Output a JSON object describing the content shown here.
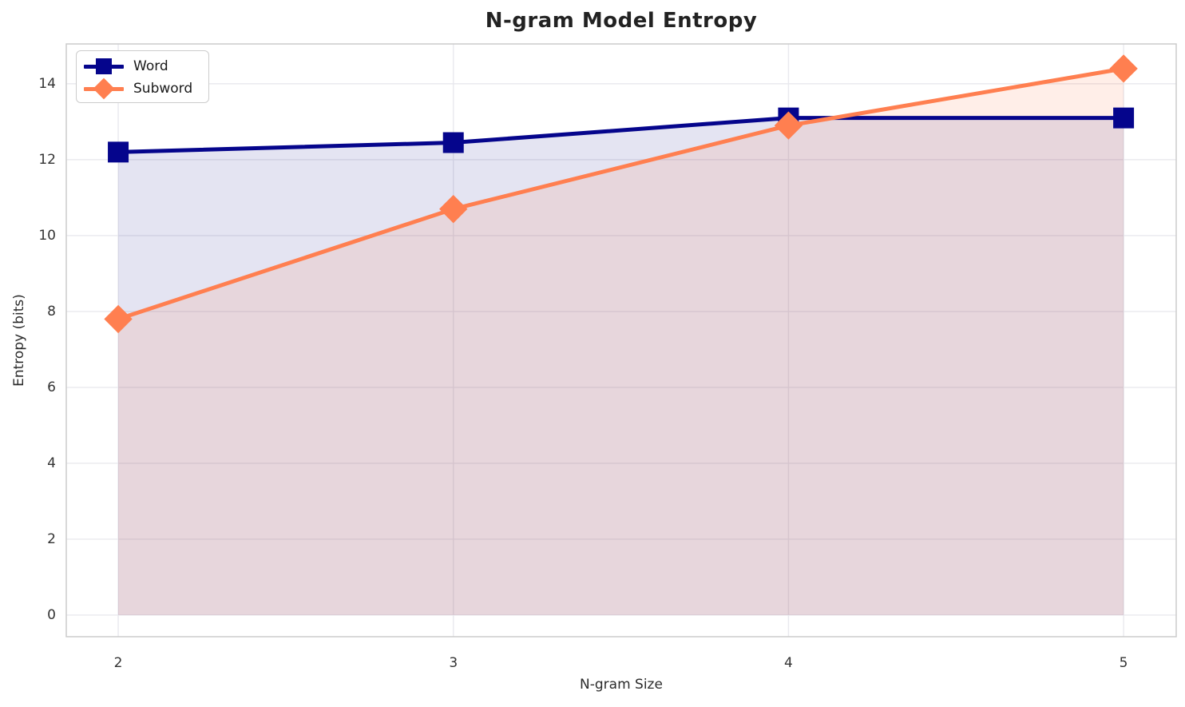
{
  "chart_data": {
    "type": "line",
    "title": "N-gram Model Entropy",
    "xlabel": "N-gram Size",
    "ylabel": "Entropy (bits)",
    "x": [
      2,
      3,
      4,
      5
    ],
    "series": [
      {
        "name": "Word",
        "values": [
          12.2,
          12.45,
          13.1,
          13.1
        ],
        "color": "#05058c",
        "marker": "square",
        "fill_opacity": 0.11
      },
      {
        "name": "Subword",
        "values": [
          7.8,
          10.7,
          12.9,
          14.4
        ],
        "color": "#ff7f50",
        "marker": "diamond",
        "fill_opacity": 0.13
      }
    ],
    "xticks": [
      "2",
      "3",
      "4",
      "5"
    ],
    "yticks": [
      "0",
      "2",
      "4",
      "6",
      "8",
      "10",
      "12",
      "14"
    ],
    "xtick_values": [
      2,
      3,
      4,
      5
    ],
    "ytick_values": [
      0,
      2,
      4,
      6,
      8,
      10,
      12,
      14
    ],
    "xlim": [
      1.845,
      5.157
    ],
    "ylim": [
      -0.57,
      15.05
    ],
    "grid": true,
    "area_fill": true,
    "fill_baseline": 0,
    "legend_position": "upper left",
    "line_width": 5,
    "grid_color": "#e9e9ee",
    "spine_color": "#cccccc",
    "background_color": "#ffffff"
  }
}
